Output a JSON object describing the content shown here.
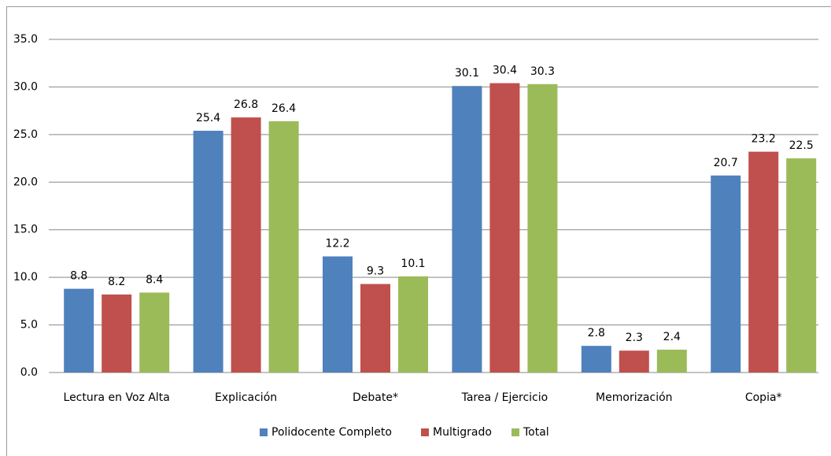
{
  "chart_data": {
    "type": "bar",
    "categories": [
      "Lectura en Voz Alta",
      "Explicación",
      "Debate*",
      "Tarea / Ejercicio",
      "Memorización",
      "Copia*"
    ],
    "series": [
      {
        "name": "Polidocente Completo",
        "color": "#4f81bd",
        "values": [
          8.8,
          25.4,
          12.2,
          30.1,
          2.8,
          20.7
        ]
      },
      {
        "name": "Multigrado",
        "color": "#c0504d",
        "values": [
          8.2,
          26.8,
          9.3,
          30.4,
          2.3,
          23.2
        ]
      },
      {
        "name": "Total",
        "color": "#9bbb59",
        "values": [
          8.4,
          26.4,
          10.1,
          30.3,
          2.4,
          22.5
        ]
      }
    ],
    "ylim": [
      0,
      35
    ],
    "yticks": [
      {
        "value": 0,
        "label": "0.0"
      },
      {
        "value": 5,
        "label": "5.0"
      },
      {
        "value": 10,
        "label": "10.0"
      },
      {
        "value": 15,
        "label": "15.0"
      },
      {
        "value": 20,
        "label": "20.0"
      },
      {
        "value": 25,
        "label": "25.0"
      },
      {
        "value": 30,
        "label": "30.0"
      },
      {
        "value": 35,
        "label": "35.0"
      }
    ],
    "grid": true,
    "legend": "bottom"
  }
}
